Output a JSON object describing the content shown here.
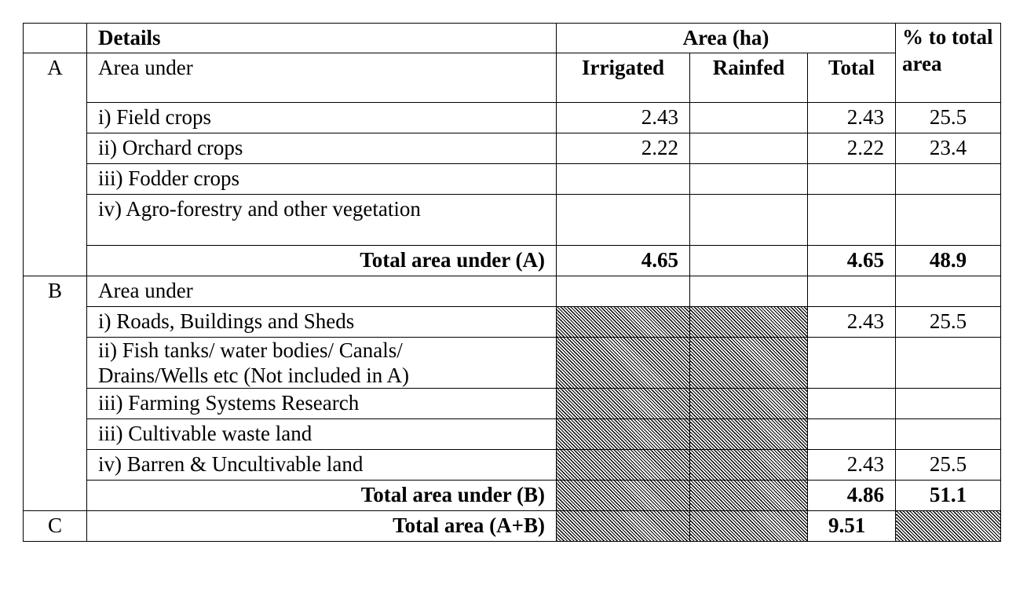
{
  "header": {
    "details": "Details",
    "area_ha": "Area (ha)",
    "pct_total_area": "% to total area",
    "irrigated": "Irrigated",
    "rainfed": "Rainfed",
    "total": "Total"
  },
  "section_a": {
    "label": "A",
    "title": "Area under",
    "rows": [
      {
        "details": "i) Field crops",
        "irrigated": "2.43",
        "rainfed": "",
        "total": "2.43",
        "pct": "25.5"
      },
      {
        "details": "ii) Orchard crops",
        "irrigated": "2.22",
        "rainfed": "",
        "total": "2.22",
        "pct": "23.4"
      },
      {
        "details": "iii) Fodder crops",
        "irrigated": "",
        "rainfed": "",
        "total": "",
        "pct": ""
      },
      {
        "details": "iv) Agro-forestry and other vegetation",
        "irrigated": "",
        "rainfed": "",
        "total": "",
        "pct": ""
      }
    ],
    "subtotal": {
      "label": "Total  area under (A)",
      "irrigated": "4.65",
      "rainfed": "",
      "total": "4.65",
      "pct": "48.9"
    }
  },
  "section_b": {
    "label": "B",
    "title": "Area under",
    "rows": [
      {
        "details": "i) Roads, Buildings and Sheds",
        "total": "2.43",
        "pct": "25.5"
      },
      {
        "details_line1": "ii) Fish tanks/ water bodies/ Canals/",
        "details_line2": "Drains/Wells etc  (Not included in A)",
        "total": "",
        "pct": ""
      },
      {
        "details": "iii) Farming Systems Research",
        "total": "",
        "pct": ""
      },
      {
        "details": "iii) Cultivable waste land",
        "total": "",
        "pct": ""
      },
      {
        "details": "iv) Barren & Uncultivable land",
        "total": "2.43",
        "pct": "25.5"
      }
    ],
    "subtotal": {
      "label": "Total area under (B)",
      "total": "4.86",
      "pct": "51.1"
    }
  },
  "section_c": {
    "label": "C",
    "label_text": "Total area (A+B)",
    "total": "9.51"
  }
}
